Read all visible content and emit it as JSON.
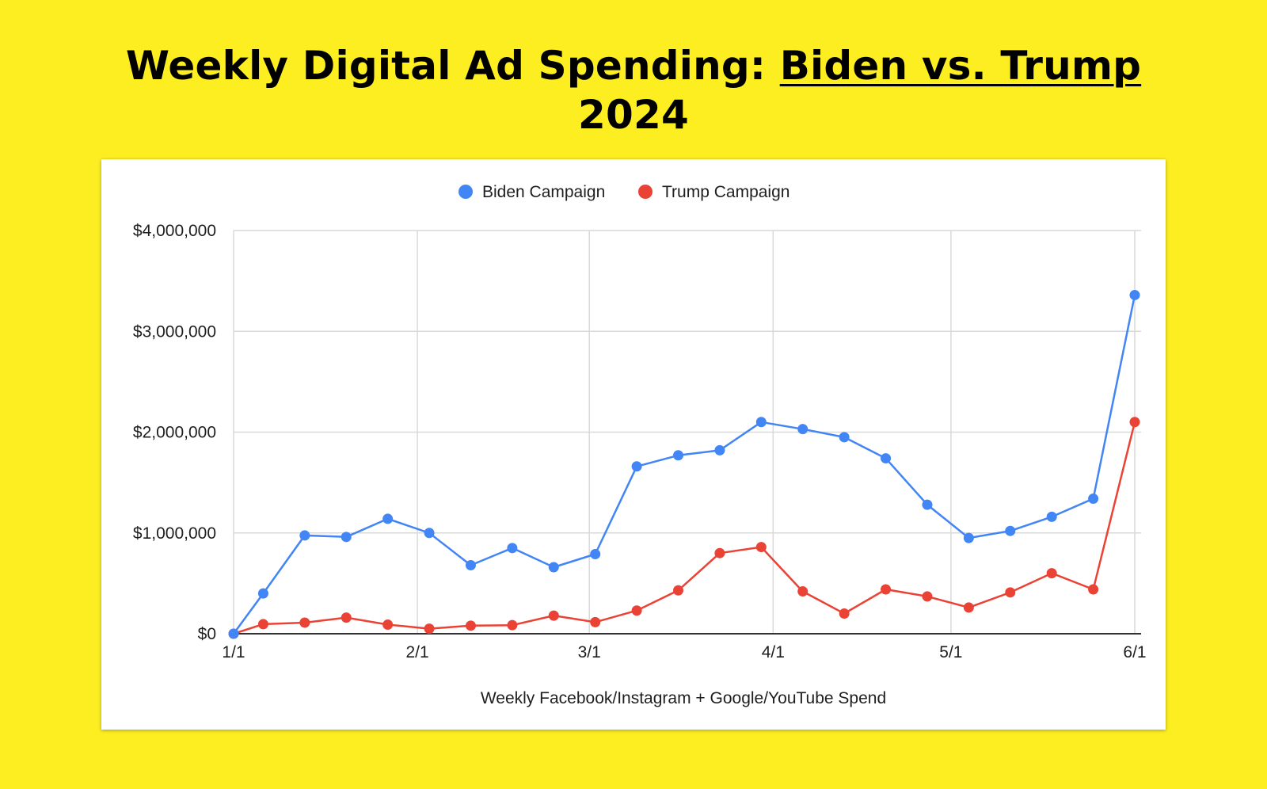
{
  "title": {
    "part1": "Weekly Digital Ad Spending: ",
    "part2": "Biden vs. Trump",
    "part3": "2024"
  },
  "colors": {
    "background": "#FCEE21",
    "biden": "#4285F4",
    "trump": "#EA4335",
    "grid": "#d9d9d9",
    "axis": "#333333"
  },
  "chart_data": {
    "type": "line",
    "title": "Weekly Digital Ad Spending: Biden vs. Trump 2024",
    "xlabel": "Weekly Facebook/Instagram + Google/YouTube Spend",
    "ylabel": "",
    "x_ticks": [
      {
        "label": "1/1",
        "date": "2024-01-01"
      },
      {
        "label": "2/1",
        "date": "2024-02-01"
      },
      {
        "label": "3/1",
        "date": "2024-03-01"
      },
      {
        "label": "4/1",
        "date": "2024-04-01"
      },
      {
        "label": "5/1",
        "date": "2024-05-01"
      },
      {
        "label": "6/1",
        "date": "2024-06-01"
      }
    ],
    "xlim": [
      "2024-01-01",
      "2024-06-01"
    ],
    "ylim": [
      0,
      4000000
    ],
    "y_ticks": [
      {
        "value": 0,
        "label": "$0"
      },
      {
        "value": 1000000,
        "label": "$1,000,000"
      },
      {
        "value": 2000000,
        "label": "$2,000,000"
      },
      {
        "value": 3000000,
        "label": "$3,000,000"
      },
      {
        "value": 4000000,
        "label": "$4,000,000"
      }
    ],
    "grid": true,
    "legend": "top-center",
    "x": [
      "2024-01-01",
      "2024-01-06",
      "2024-01-13",
      "2024-01-20",
      "2024-01-27",
      "2024-02-03",
      "2024-02-10",
      "2024-02-17",
      "2024-02-24",
      "2024-03-02",
      "2024-03-09",
      "2024-03-16",
      "2024-03-23",
      "2024-03-30",
      "2024-04-06",
      "2024-04-13",
      "2024-04-20",
      "2024-04-27",
      "2024-05-04",
      "2024-05-11",
      "2024-05-18",
      "2024-05-25",
      "2024-06-01"
    ],
    "series": [
      {
        "name": "Biden Campaign",
        "color": "#4285F4",
        "values": [
          0,
          400000,
          975000,
          960000,
          1140000,
          1000000,
          680000,
          850000,
          660000,
          790000,
          1660000,
          1770000,
          1820000,
          2100000,
          2030000,
          1950000,
          1740000,
          1280000,
          950000,
          1020000,
          1160000,
          1340000,
          3360000
        ]
      },
      {
        "name": "Trump Campaign",
        "color": "#EA4335",
        "values": [
          0,
          95000,
          110000,
          160000,
          90000,
          50000,
          80000,
          85000,
          180000,
          115000,
          230000,
          430000,
          800000,
          860000,
          420000,
          200000,
          440000,
          370000,
          260000,
          410000,
          600000,
          440000,
          2100000
        ]
      }
    ]
  }
}
